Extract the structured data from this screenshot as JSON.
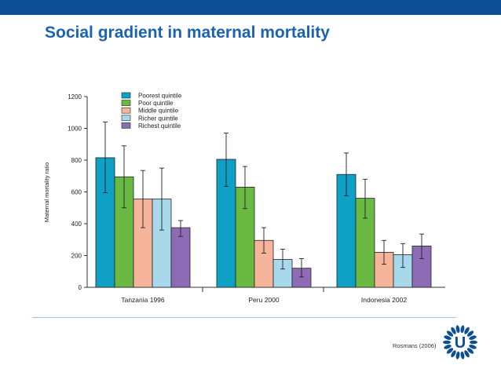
{
  "slide": {
    "title": "Social gradient in maternal mortality",
    "source": "Rosmans (2006)",
    "logo_letter": "U"
  },
  "colors": {
    "topbar": "#0d4f95",
    "title": "#1a63b0",
    "series": [
      "#0fa0c5",
      "#6ab943",
      "#f6b49a",
      "#a7d9ea",
      "#8e6bb5"
    ]
  },
  "chart_data": {
    "type": "bar",
    "title": "",
    "xlabel": "",
    "ylabel": "Maternal mortality ratio",
    "ylim": [
      0,
      1200
    ],
    "yticks": [
      0,
      200,
      400,
      600,
      800,
      1000,
      1200
    ],
    "grid": false,
    "legend_position": "top-center",
    "categories": [
      "Tanzania 1996",
      "Peru 2000",
      "Indonesia 2002"
    ],
    "series": [
      {
        "name": "Poorest quintile",
        "values": [
          815,
          805,
          710
        ],
        "error_low": [
          595,
          635,
          575
        ],
        "error_high": [
          1040,
          970,
          845
        ]
      },
      {
        "name": "Poor quintile",
        "values": [
          695,
          630,
          560
        ],
        "error_low": [
          500,
          495,
          435
        ],
        "error_high": [
          890,
          760,
          680
        ]
      },
      {
        "name": "Middle quintile",
        "values": [
          555,
          295,
          220
        ],
        "error_low": [
          375,
          215,
          145
        ],
        "error_high": [
          735,
          375,
          295
        ]
      },
      {
        "name": "Richer quintile",
        "values": [
          555,
          175,
          205
        ],
        "error_low": [
          360,
          115,
          125
        ],
        "error_high": [
          750,
          240,
          275
        ]
      },
      {
        "name": "Richest quintile",
        "values": [
          375,
          120,
          260
        ],
        "error_low": [
          320,
          65,
          180
        ],
        "error_high": [
          420,
          180,
          335
        ]
      }
    ]
  }
}
